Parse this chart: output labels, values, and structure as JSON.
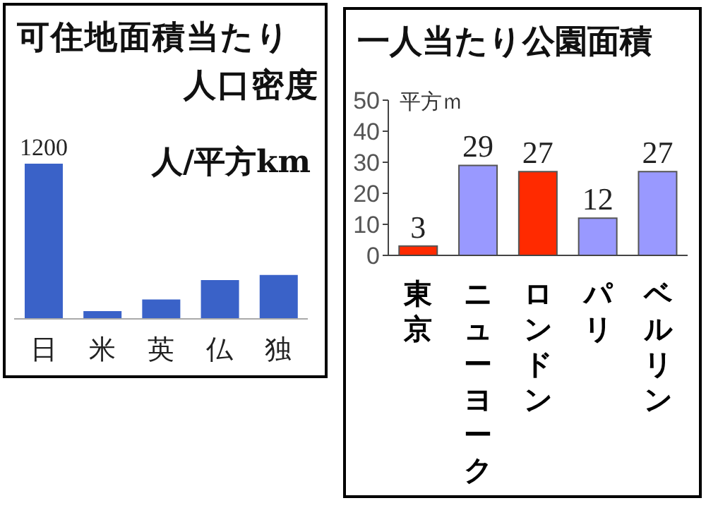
{
  "chart_data": [
    {
      "type": "bar",
      "title": "可住地面積当たり人口密度",
      "ylabel": "人/平方km",
      "categories": [
        "日",
        "米",
        "英",
        "仏",
        "独"
      ],
      "values": [
        1200,
        60,
        150,
        300,
        340
      ],
      "value_labels": [
        "1200",
        null,
        null,
        null,
        null
      ],
      "color": "#3a62c8",
      "tick_labels": "x"
    },
    {
      "type": "bar",
      "title": "一人当たり公園面積",
      "ylabel": "平方ｍ",
      "categories": [
        "東京",
        "ニューヨーク",
        "ロンドン",
        "パリ",
        "ベルリン"
      ],
      "values": [
        3,
        29,
        27,
        12,
        27
      ],
      "colors": [
        "#ff2a00",
        "#9999ff",
        "#ff2a00",
        "#9999ff",
        "#9999ff"
      ],
      "ylim": [
        0,
        50
      ],
      "yticks": [
        0,
        10,
        20,
        30,
        40,
        50
      ],
      "data_labels": true
    }
  ]
}
